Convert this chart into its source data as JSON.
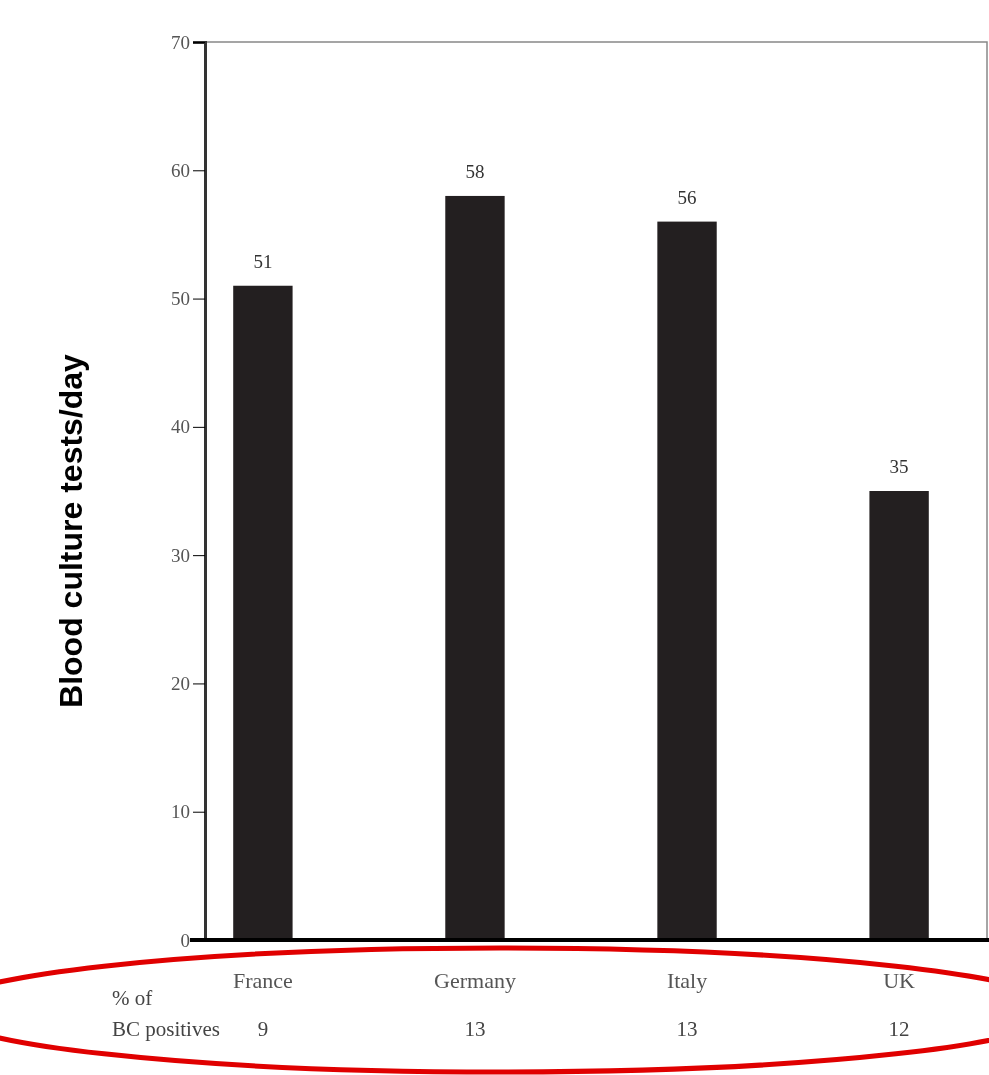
{
  "chart_data": {
    "type": "bar",
    "ylabel": "Blood culture tests/day",
    "categories": [
      "France",
      "Germany",
      "Italy",
      "UK"
    ],
    "values": [
      51,
      58,
      56,
      35
    ],
    "color": "#231f20",
    "data_labels": true,
    "ylim": [
      0,
      70
    ],
    "yticks": [
      0,
      10,
      20,
      30,
      40,
      50,
      60,
      70
    ],
    "annotations": [
      "% of BC positives",
      "9",
      "13",
      "13",
      "12"
    ]
  }
}
